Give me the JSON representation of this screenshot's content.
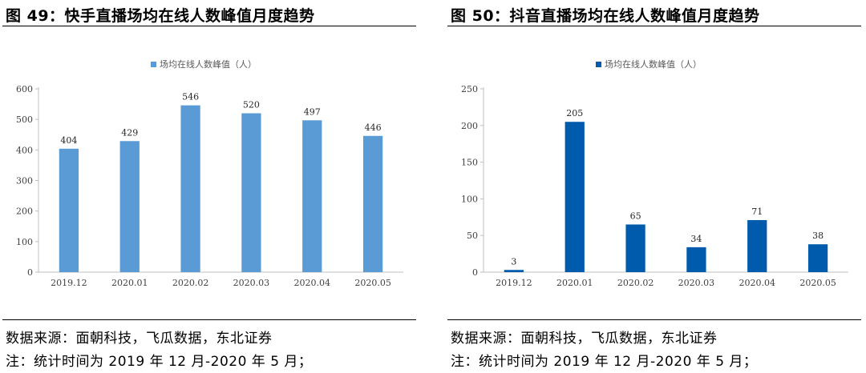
{
  "figures": [
    {
      "title": "图 49：快手直播场均在线人数峰值月度趋势",
      "source": "数据来源：面朝科技，飞瓜数据，东北证券",
      "note": "注：统计时间为 2019 年 12 月-2020 年 5 月；",
      "color": "#5b9bd5"
    },
    {
      "title": "图 50：抖音直播场均在线人数峰值月度趋势",
      "source": "数据来源：面朝科技，飞瓜数据，东北证券",
      "note": "注：统计时间为 2019 年 12 月-2020 年 5 月；",
      "color": "#005bac"
    }
  ],
  "chart_data": [
    {
      "type": "bar",
      "categories": [
        "2019.12",
        "2020.01",
        "2020.02",
        "2020.03",
        "2020.04",
        "2020.05"
      ],
      "series": [
        {
          "name": "场均在线人数峰值（人）",
          "values": [
            404,
            429,
            546,
            520,
            497,
            446
          ]
        }
      ],
      "ylim": [
        0,
        600
      ],
      "yticks": [
        0,
        100,
        200,
        300,
        400,
        500,
        600
      ],
      "legend": "top-center",
      "grid": false,
      "data_labels": true
    },
    {
      "type": "bar",
      "categories": [
        "2019.12",
        "2020.01",
        "2020.02",
        "2020.03",
        "2020.04",
        "2020.05"
      ],
      "series": [
        {
          "name": "场均在线人数峰值（人）",
          "values": [
            3,
            205,
            65,
            34,
            71,
            38
          ]
        }
      ],
      "ylim": [
        0,
        250
      ],
      "yticks": [
        0,
        50,
        100,
        150,
        200,
        250
      ],
      "legend": "top-center",
      "grid": false,
      "data_labels": true
    }
  ]
}
